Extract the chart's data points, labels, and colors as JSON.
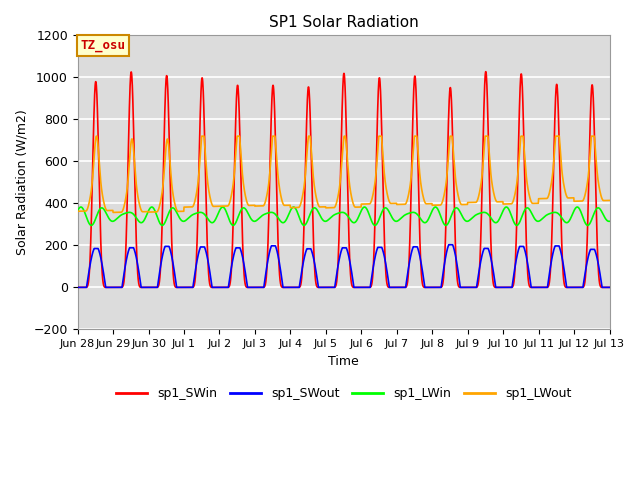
{
  "title": "SP1 Solar Radiation",
  "ylabel": "Solar Radiation (W/m2)",
  "xlabel": "Time",
  "ylim": [
    -200,
    1200
  ],
  "annotation_text": "TZ_osu",
  "annotation_facecolor": "#FFFFCC",
  "annotation_edgecolor": "#CC8800",
  "annotation_textcolor": "#CC0000",
  "background_color": "#DCDCDC",
  "grid_color": "white",
  "series": {
    "sp1_SWin": {
      "color": "#FF0000",
      "lw": 1.2
    },
    "sp1_SWout": {
      "color": "#0000FF",
      "lw": 1.2
    },
    "sp1_LWin": {
      "color": "#00FF00",
      "lw": 1.2
    },
    "sp1_LWout": {
      "color": "#FFA500",
      "lw": 1.2
    }
  },
  "x_tick_labels": [
    "Jun 28",
    "Jun 29",
    "Jun 30",
    "Jul 1",
    "Jul 2",
    "Jul 3",
    "Jul 4",
    "Jul 5",
    "Jul 6",
    "Jul 7",
    "Jul 8",
    "Jul 9",
    "Jul 10",
    "Jul 11",
    "Jul 12",
    "Jul 13"
  ],
  "yticks": [
    -200,
    0,
    200,
    400,
    600,
    800,
    1000,
    1200
  ]
}
